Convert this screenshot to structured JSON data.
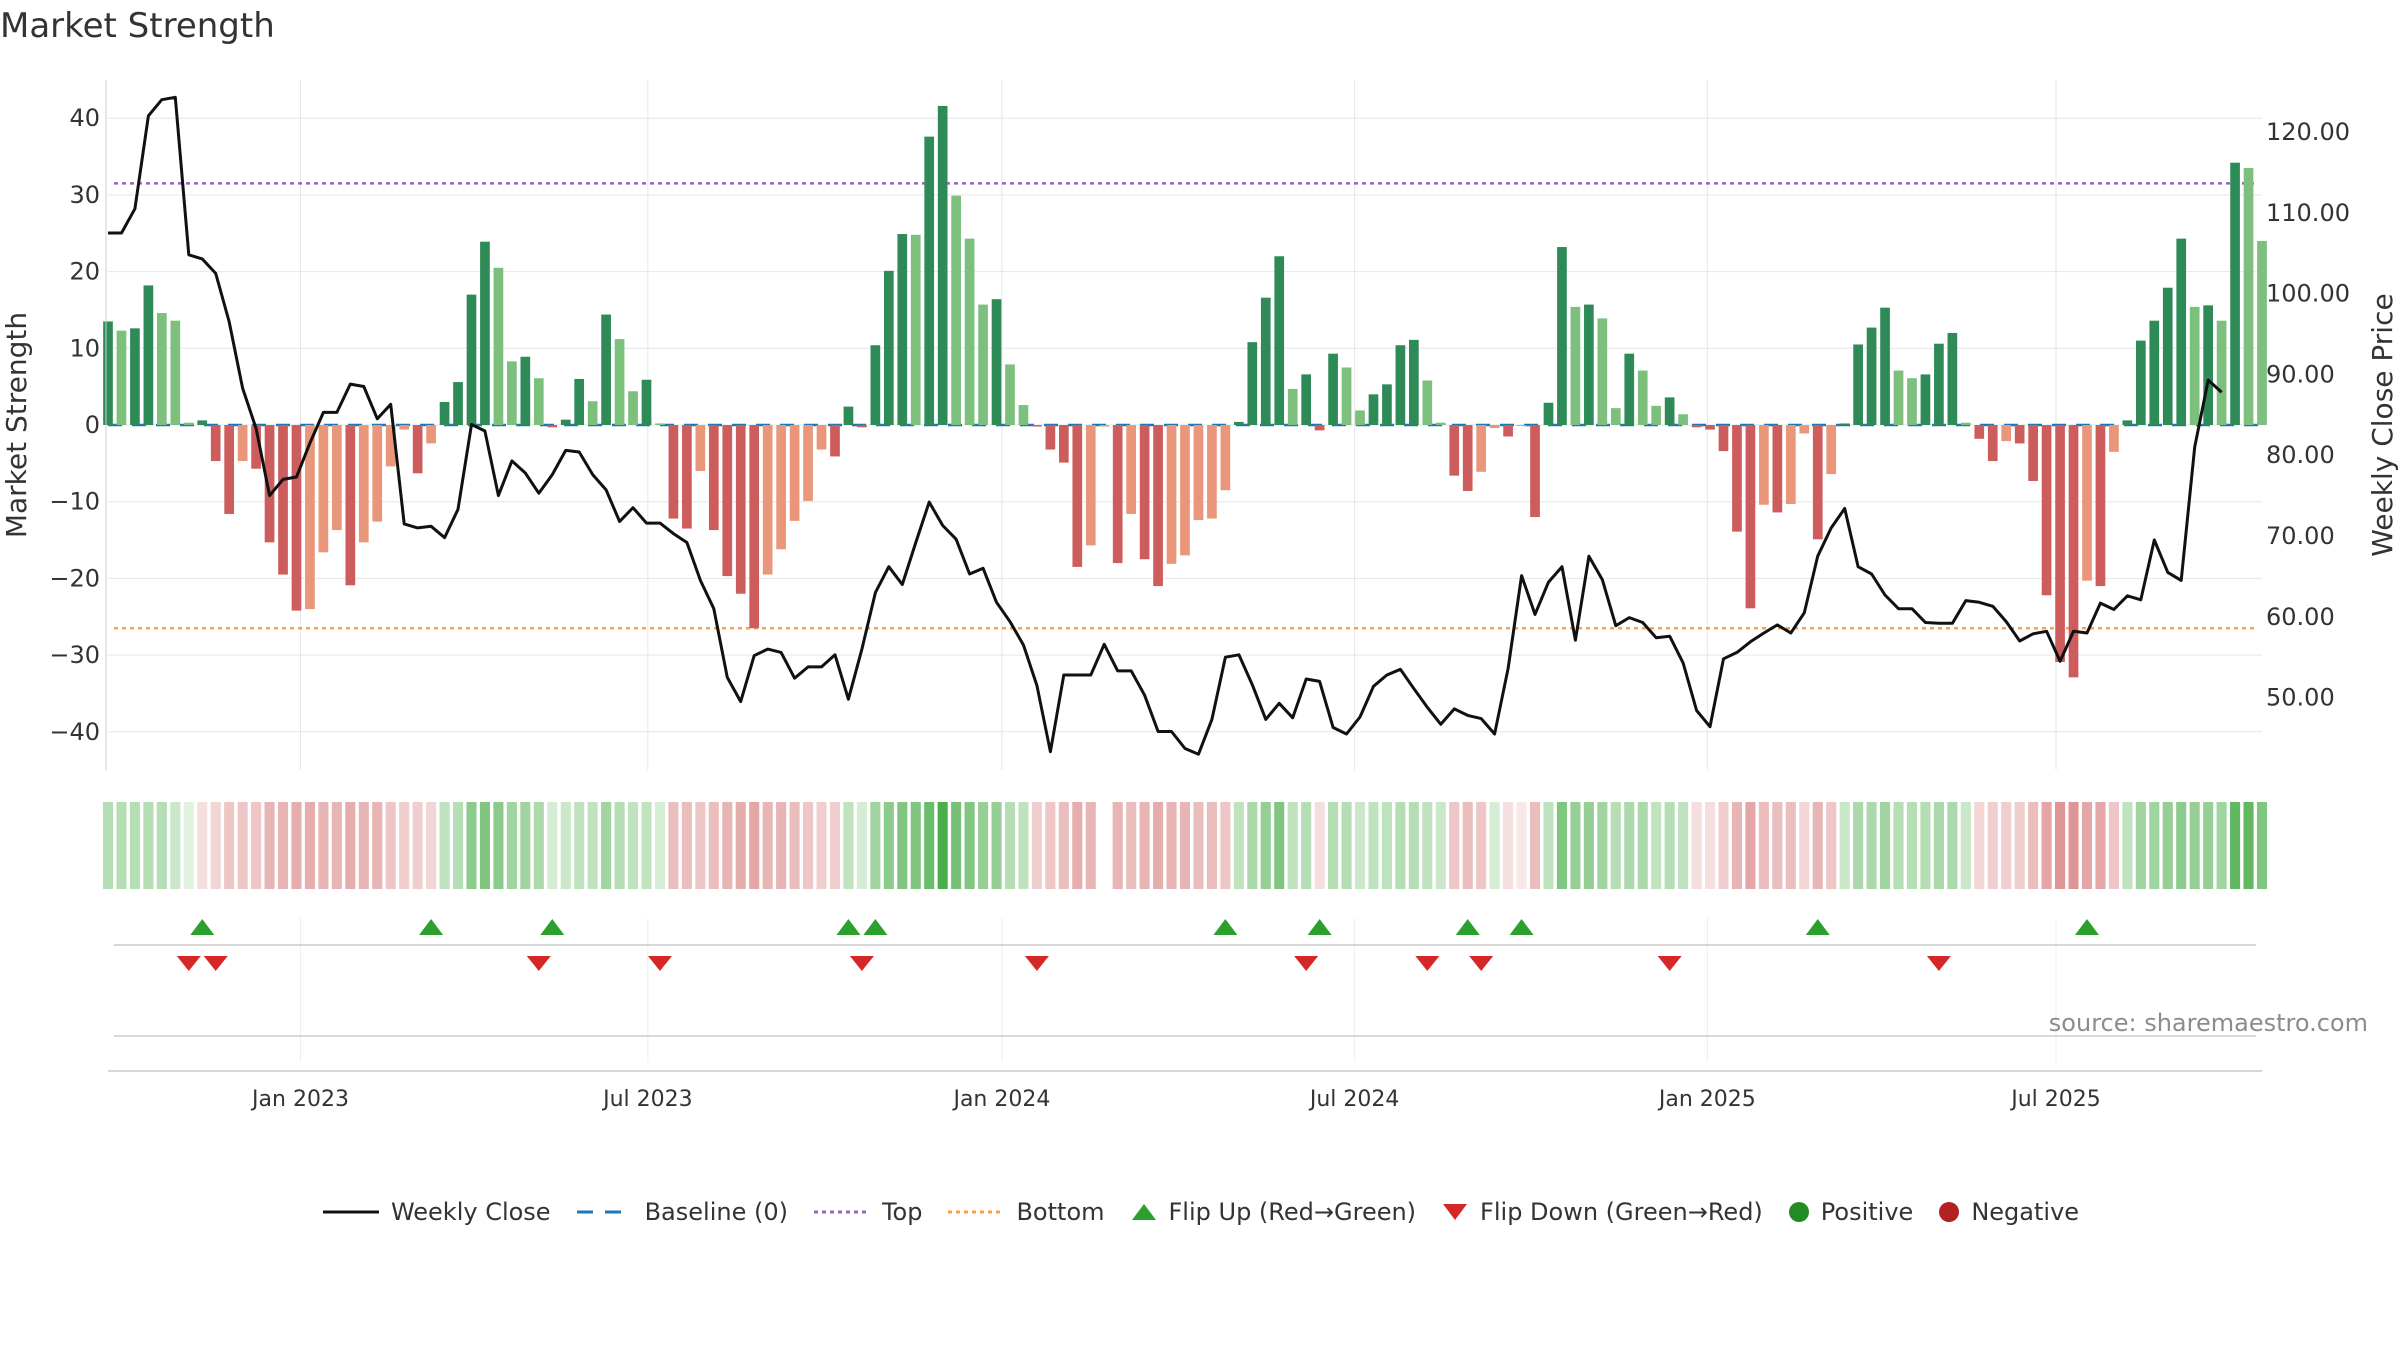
{
  "title": "Market Strength",
  "source": "source: sharemaestro.com",
  "colors": {
    "strong_green": "#2e8b57",
    "light_green": "#7dbf7d",
    "strong_red": "#cd5c5c",
    "light_red": "#e9967a",
    "price_line": "#111111",
    "baseline": "#1f77b4",
    "top": "#9467bd",
    "bottom": "#ff9f4a",
    "flip_up": "#2ca02c",
    "flip_down": "#d62728",
    "positive": "#228b22",
    "negative": "#b22222",
    "grid": "#e6e6e6"
  },
  "legend": [
    {
      "label": "Weekly Close",
      "kind": "line"
    },
    {
      "label": "Baseline (0)",
      "kind": "dash"
    },
    {
      "label": "Top",
      "kind": "dot-purple"
    },
    {
      "label": "Bottom",
      "kind": "dot-orange"
    },
    {
      "label": "Flip Up (Red→Green)",
      "kind": "tri-up"
    },
    {
      "label": "Flip Down (Green→Red)",
      "kind": "tri-down"
    },
    {
      "label": "Positive",
      "kind": "circle-green"
    },
    {
      "label": "Negative",
      "kind": "circle-red"
    }
  ],
  "chart_data": {
    "type": "bar",
    "title": "Market Strength",
    "ylabel": "Market Strength",
    "y2label": "Weekly Close Price",
    "ylim": [
      -45,
      45
    ],
    "y2lim": [
      43.3,
      129
    ],
    "yticks": [
      40,
      30,
      20,
      10,
      0,
      -10,
      -20,
      -30,
      -40
    ],
    "yticks_labels": [
      "40",
      "30",
      "20",
      "10",
      "0",
      "−10",
      "−20",
      "−30",
      "−40"
    ],
    "y2ticks": [
      120,
      110,
      100,
      90,
      80,
      70,
      60,
      50
    ],
    "y2ticks_labels": [
      "120.00",
      "110.00",
      "100.00",
      "90.00",
      "80.00",
      "70.00",
      "60.00",
      "50.00"
    ],
    "top_level": 31.5,
    "bottom_level": -26.5,
    "baseline": 0,
    "x_start": "2022-10-03",
    "week_step": 1,
    "xticks": [
      "Jan 2023",
      "Jul 2023",
      "Jan 2024",
      "Jul 2024",
      "Jan 2025",
      "Jul 2025"
    ],
    "xtick_weeks": [
      14.3,
      40.1,
      66.4,
      92.6,
      118.8,
      144.7
    ],
    "strength": [
      13.5,
      12.3,
      12.6,
      18.2,
      14.6,
      13.6,
      0.3,
      0.6,
      -4.7,
      -11.6,
      -4.7,
      -5.7,
      -15.3,
      -19.5,
      -24.2,
      -24.0,
      -16.6,
      -13.7,
      -20.9,
      -15.3,
      -12.6,
      -5.4,
      -0.6,
      -6.3,
      -2.4,
      3.0,
      5.6,
      17.0,
      23.9,
      20.5,
      8.3,
      8.9,
      6.1,
      -0.3,
      0.7,
      6.0,
      3.1,
      14.4,
      11.2,
      4.4,
      5.9,
      0.2,
      -12.2,
      -13.5,
      -6.0,
      -13.7,
      -19.7,
      -22.0,
      -26.5,
      -19.5,
      -16.2,
      -12.5,
      -9.9,
      -3.2,
      -4.1,
      2.4,
      -0.3,
      10.4,
      20.1,
      24.9,
      24.8,
      37.6,
      41.6,
      29.9,
      24.3,
      15.7,
      16.4,
      7.9,
      2.6,
      -0.2,
      -3.2,
      -4.9,
      -18.5,
      -15.7,
      -0.2,
      -18.0,
      -11.6,
      -17.5,
      -21.0,
      -18.1,
      -17.0,
      -12.4,
      -12.2,
      -8.5,
      0.4,
      10.8,
      16.6,
      22.0,
      4.7,
      6.6,
      -0.7,
      9.3,
      7.5,
      1.9,
      4.0,
      5.3,
      10.4,
      11.1,
      5.8,
      0.3,
      -6.6,
      -8.6,
      -6.1,
      -0.4,
      -1.5,
      -0.1,
      -12.0,
      2.9,
      23.2,
      15.4,
      15.7,
      13.9,
      2.2,
      9.3,
      7.1,
      2.5,
      3.6,
      1.4,
      -0.3,
      -0.6,
      -3.4,
      -13.9,
      -23.9,
      -10.4,
      -11.4,
      -10.3,
      -1.1,
      -14.9,
      -6.4,
      0.2,
      10.5,
      12.7,
      15.3,
      7.1,
      6.1,
      6.6,
      10.6,
      12.0,
      0.3,
      -1.8,
      -4.7,
      -2.1,
      -2.4,
      -7.3,
      -22.2,
      -30.9,
      -32.9,
      -20.3,
      -21.0,
      -3.5,
      0.6,
      11.0,
      13.6,
      17.9,
      24.3,
      15.4,
      15.6,
      13.6,
      34.2,
      33.5,
      24.0
    ],
    "close": [
      107.5,
      107.5,
      110.5,
      122.0,
      124.0,
      124.3,
      104.8,
      104.3,
      102.5,
      96.5,
      88.3,
      83.3,
      75.0,
      77.0,
      77.3,
      81.5,
      85.3,
      85.3,
      88.8,
      88.5,
      84.5,
      86.3,
      71.5,
      71.0,
      71.2,
      69.8,
      73.3,
      83.8,
      83.0,
      75.0,
      79.3,
      77.8,
      75.3,
      77.6,
      80.6,
      80.4,
      77.6,
      75.7,
      71.8,
      73.5,
      71.6,
      71.6,
      70.3,
      69.2,
      64.5,
      61.0,
      52.5,
      49.5,
      55.2,
      56.0,
      55.6,
      52.4,
      53.8,
      53.8,
      55.3,
      49.8,
      56.0,
      63.0,
      66.2,
      64.0,
      69.2,
      74.2,
      71.3,
      69.6,
      65.3,
      66.0,
      61.8,
      59.4,
      56.5,
      51.5,
      43.3,
      52.8,
      52.8,
      52.8,
      56.6,
      53.3,
      53.3,
      50.3,
      45.8,
      45.8,
      43.7,
      43.0,
      47.3,
      55.0,
      55.3,
      51.6,
      47.3,
      49.3,
      47.5,
      52.3,
      52.0,
      46.3,
      45.5,
      47.6,
      51.4,
      52.8,
      53.5,
      51.1,
      48.8,
      46.7,
      48.6,
      47.8,
      47.4,
      45.5,
      53.6,
      65.1,
      60.3,
      64.3,
      66.2,
      57.1,
      67.5,
      64.6,
      58.9,
      59.9,
      59.3,
      57.4,
      57.6,
      54.3,
      48.4,
      46.4,
      54.8,
      55.6,
      56.9,
      58.0,
      59.0,
      58.0,
      60.5,
      67.5,
      71.0,
      73.4,
      66.2,
      65.3,
      62.7,
      61.0,
      61.0,
      59.3,
      59.2,
      59.2,
      62.0,
      61.8,
      61.3,
      59.4,
      57.0,
      57.9,
      58.2,
      54.5,
      58.2,
      58.0,
      61.7,
      60.9,
      62.6,
      62.1,
      69.5,
      65.5,
      64.5,
      81.0,
      89.3,
      87.8
    ],
    "flip_up_weeks": [
      7,
      24,
      33,
      55,
      57,
      83,
      90,
      101,
      105,
      127,
      147
    ],
    "flip_down_weeks": [
      6,
      8,
      32,
      41,
      56,
      69,
      89,
      98,
      102,
      116,
      136
    ],
    "heat_strip": [
      0.35,
      0.35,
      0.35,
      0.35,
      0.35,
      0.25,
      0.15,
      -0.2,
      -0.25,
      -0.35,
      -0.35,
      -0.35,
      -0.45,
      -0.45,
      -0.5,
      -0.5,
      -0.45,
      -0.45,
      -0.5,
      -0.45,
      -0.45,
      -0.35,
      -0.3,
      -0.3,
      -0.25,
      0.3,
      0.35,
      0.55,
      0.6,
      0.55,
      0.45,
      0.45,
      0.4,
      0.2,
      0.25,
      0.3,
      0.3,
      0.45,
      0.35,
      0.3,
      0.3,
      0.2,
      -0.4,
      -0.4,
      -0.35,
      -0.4,
      -0.45,
      -0.5,
      -0.55,
      -0.45,
      -0.45,
      -0.4,
      -0.35,
      -0.3,
      -0.3,
      0.3,
      0.2,
      0.45,
      0.55,
      0.6,
      0.6,
      0.7,
      0.85,
      0.65,
      0.6,
      0.5,
      0.5,
      0.35,
      0.3,
      -0.3,
      -0.35,
      -0.4,
      -0.5,
      -0.45,
      0,
      -0.45,
      -0.4,
      -0.45,
      -0.5,
      -0.45,
      -0.45,
      -0.4,
      -0.4,
      -0.35,
      0.3,
      0.4,
      0.5,
      0.6,
      0.3,
      0.35,
      -0.2,
      0.35,
      0.35,
      0.25,
      0.3,
      0.3,
      0.35,
      0.35,
      0.3,
      0.25,
      -0.35,
      -0.4,
      -0.35,
      0.2,
      -0.2,
      -0.15,
      -0.4,
      0.3,
      0.6,
      0.5,
      0.5,
      0.45,
      0.35,
      0.4,
      0.4,
      0.3,
      0.35,
      0.3,
      -0.2,
      -0.2,
      -0.3,
      -0.45,
      -0.55,
      -0.4,
      -0.4,
      -0.4,
      -0.25,
      -0.45,
      -0.35,
      0.25,
      0.4,
      0.4,
      0.45,
      0.35,
      0.35,
      0.35,
      0.4,
      0.4,
      0.25,
      -0.25,
      -0.3,
      -0.3,
      -0.3,
      -0.4,
      -0.55,
      -0.65,
      -0.65,
      -0.55,
      -0.55,
      -0.35,
      0.3,
      0.45,
      0.45,
      0.5,
      0.55,
      0.5,
      0.5,
      0.45,
      0.75,
      0.75,
      0.6
    ]
  }
}
